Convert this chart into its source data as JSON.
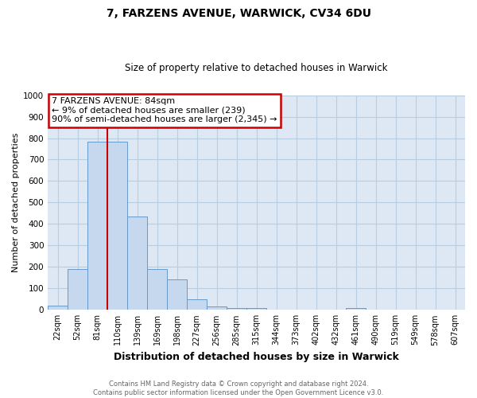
{
  "title": "7, FARZENS AVENUE, WARWICK, CV34 6DU",
  "subtitle": "Size of property relative to detached houses in Warwick",
  "xlabel": "Distribution of detached houses by size in Warwick",
  "ylabel": "Number of detached properties",
  "bar_labels": [
    "22sqm",
    "52sqm",
    "81sqm",
    "110sqm",
    "139sqm",
    "169sqm",
    "198sqm",
    "227sqm",
    "256sqm",
    "285sqm",
    "315sqm",
    "344sqm",
    "373sqm",
    "402sqm",
    "432sqm",
    "461sqm",
    "490sqm",
    "519sqm",
    "549sqm",
    "578sqm",
    "607sqm"
  ],
  "bar_values": [
    18,
    190,
    785,
    785,
    435,
    190,
    143,
    50,
    15,
    10,
    10,
    0,
    0,
    0,
    0,
    10,
    0,
    0,
    0,
    0,
    0
  ],
  "bar_color": "#c5d8ee",
  "bar_edge_color": "#6699cc",
  "vline_x": 2.5,
  "vline_color": "#cc0000",
  "ylim": [
    0,
    1000
  ],
  "yticks": [
    0,
    100,
    200,
    300,
    400,
    500,
    600,
    700,
    800,
    900,
    1000
  ],
  "annotation_box_text": "7 FARZENS AVENUE: 84sqm\n← 9% of detached houses are smaller (239)\n90% of semi-detached houses are larger (2,345) →",
  "annotation_box_color": "#cc0000",
  "footnote": "Contains HM Land Registry data © Crown copyright and database right 2024.\nContains public sector information licensed under the Open Government Licence v3.0.",
  "background_color": "#ffffff",
  "plot_bg_color": "#dde8f4",
  "grid_color": "#b8cde0",
  "title_fontsize": 10,
  "subtitle_fontsize": 8.5,
  "ylabel_fontsize": 8,
  "xlabel_fontsize": 9,
  "footnote_fontsize": 6,
  "footnote_color": "#666666"
}
